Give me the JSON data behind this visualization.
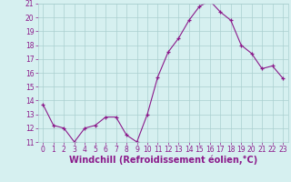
{
  "x": [
    0,
    1,
    2,
    3,
    4,
    5,
    6,
    7,
    8,
    9,
    10,
    11,
    12,
    13,
    14,
    15,
    16,
    17,
    18,
    19,
    20,
    21,
    22,
    23
  ],
  "y": [
    13.7,
    12.2,
    12.0,
    11.0,
    12.0,
    12.2,
    12.8,
    12.8,
    11.5,
    11.0,
    13.0,
    15.7,
    17.5,
    18.5,
    19.8,
    20.8,
    21.2,
    20.4,
    19.8,
    18.0,
    17.4,
    16.3,
    16.5,
    15.6
  ],
  "line_color": "#8B1A8B",
  "marker": "+",
  "marker_size": 3,
  "bg_color": "#D6F0F0",
  "grid_color": "#AACFCF",
  "xlabel": "Windchill (Refroidissement éolien,°C)",
  "xlabel_color": "#8B1A8B",
  "ylim": [
    11,
    21
  ],
  "xlim": [
    -0.5,
    23.5
  ],
  "yticks": [
    11,
    12,
    13,
    14,
    15,
    16,
    17,
    18,
    19,
    20,
    21
  ],
  "xticks": [
    0,
    1,
    2,
    3,
    4,
    5,
    6,
    7,
    8,
    9,
    10,
    11,
    12,
    13,
    14,
    15,
    16,
    17,
    18,
    19,
    20,
    21,
    22,
    23
  ],
  "tick_color": "#8B1A8B",
  "tick_fontsize": 5.5,
  "xlabel_fontsize": 7.0
}
